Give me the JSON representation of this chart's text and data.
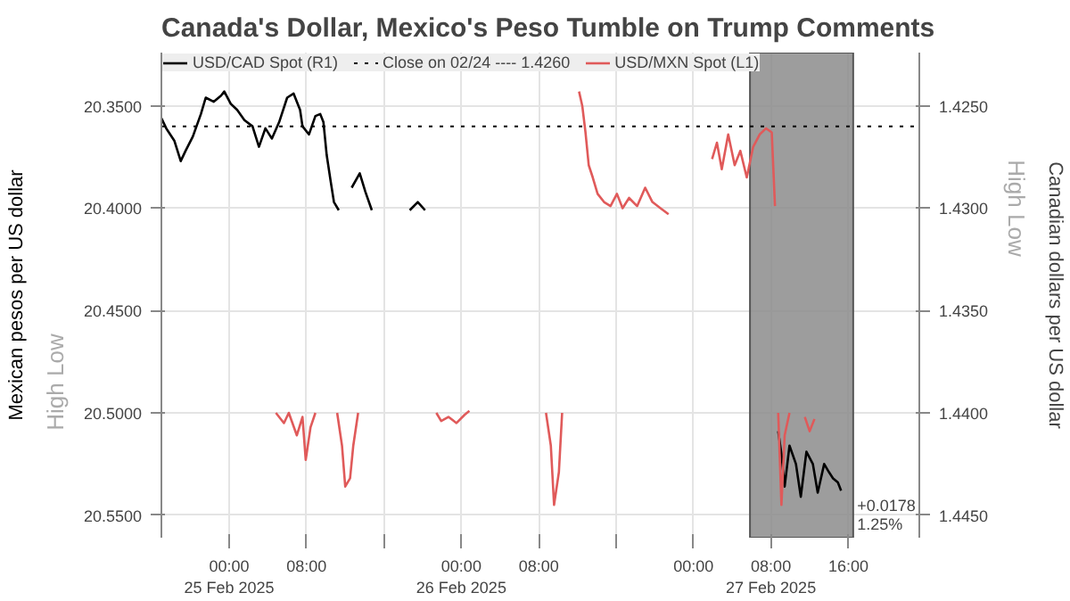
{
  "chart_data": {
    "type": "line",
    "title": "Canada's Dollar, Mexico's Peso Tumble on Trump Comments",
    "ylabel": "Mexican pesos per US dollar",
    "y2label": "Canadian dollars per US dollar",
    "annotations": [
      "Low",
      "High",
      "Low",
      "High",
      "+0.0178\n1.25%"
    ],
    "xlim": [
      "2025-02-24T17:00",
      "2025-02-27T23:20"
    ],
    "xticks": [
      {
        "value": "2025-02-25T00:00",
        "label": "00:00\n25 Feb 2025"
      },
      {
        "value": "2025-02-25T08:00",
        "label": "08:00"
      },
      {
        "value": "2025-02-25T16:00",
        "label": null
      },
      {
        "value": "2025-02-26T00:00",
        "label": "00:00\n26 Feb 2025"
      },
      {
        "value": "2025-02-26T08:00",
        "label": "08:00"
      },
      {
        "value": "2025-02-26T16:00",
        "label": null
      },
      {
        "value": "2025-02-27T00:00",
        "label": "00:00"
      },
      {
        "value": "2025-02-27T08:00",
        "label": "08:00\n27 Feb 2025"
      },
      {
        "value": "2025-02-27T16:00",
        "label": "16:00"
      }
    ],
    "ylim": [
      20.561,
      20.324
    ],
    "yticks": [
      {
        "value": 20.35,
        "label": "20.3500"
      },
      {
        "value": 20.4,
        "label": "20.4000"
      },
      {
        "value": 20.45,
        "label": "20.4500"
      },
      {
        "value": 20.5,
        "label": "20.5000"
      },
      {
        "value": 20.55,
        "label": "20.5500"
      }
    ],
    "y2lim": [
      1.4461,
      1.4224
    ],
    "y2ticks": [
      {
        "value": 1.425,
        "label": "1.4250"
      },
      {
        "value": 1.43,
        "label": "1.4300"
      },
      {
        "value": 1.435,
        "label": "1.4350"
      },
      {
        "value": 1.44,
        "label": "1.4400"
      },
      {
        "value": 1.445,
        "label": "1.4450"
      }
    ],
    "grid": true,
    "legend": "top",
    "series": [
      {
        "name": "USD/CAD Spot (R1)",
        "color": "#000000",
        "axis": "y2",
        "x": [
          "2025-02-24T17:00",
          "2025-02-24T17:30",
          "2025-02-24T18:20",
          "2025-02-24T19:00",
          "2025-02-24T19:30",
          "2025-02-24T20:15",
          "2025-02-24T21:05",
          "2025-02-24T21:35",
          "2025-02-24T22:25",
          "2025-02-24T23:10",
          "2025-02-24T23:30",
          "2025-02-25T00:10",
          "2025-02-25T00:50",
          "2025-02-25T01:35",
          "2025-02-25T02:25",
          "2025-02-25T03:05",
          "2025-02-25T03:45",
          "2025-02-25T04:25",
          "2025-02-25T05:10",
          "2025-02-25T06:00",
          "2025-02-25T06:40",
          "2025-02-25T07:20",
          "2025-02-25T07:35",
          "2025-02-25T08:15",
          "2025-02-25T08:55",
          "2025-02-25T09:25",
          "2025-02-25T09:45",
          "2025-02-25T10:05",
          "2025-02-25T10:30",
          "2025-02-25T10:50",
          "2025-02-25T11:20",
          "2025-02-25T12:00",
          "2025-02-25T12:40",
          "2025-02-25T13:30",
          "2025-02-25T14:05",
          "2025-02-25T14:45",
          "2025-02-25T16:15",
          "2025-02-25T18:40",
          "2025-02-25T19:30",
          "2025-02-25T20:15",
          "2025-02-26T23:50",
          "2025-02-27T08:45",
          "2025-02-27T09:05",
          "2025-02-27T09:25",
          "2025-02-27T09:55",
          "2025-02-27T10:35",
          "2025-02-27T11:05",
          "2025-02-27T11:40",
          "2025-02-27T12:20",
          "2025-02-27T12:50",
          "2025-02-27T13:30",
          "2025-02-27T14:00",
          "2025-02-27T14:25",
          "2025-02-27T14:55",
          "2025-02-27T15:15"
        ],
        "values": [
          1.4256,
          1.4261,
          1.4267,
          1.4277,
          1.4272,
          1.4265,
          1.4254,
          1.4246,
          1.4248,
          1.4245,
          1.4243,
          1.4249,
          1.4252,
          1.4257,
          1.426,
          1.427,
          1.4261,
          1.4266,
          1.4258,
          1.4246,
          1.4244,
          1.4252,
          1.426,
          1.4264,
          1.4255,
          1.4254,
          1.4258,
          1.4274,
          1.4287,
          1.4297,
          1.4301,
          null,
          1.429,
          1.4283,
          1.4292,
          1.4301,
          null,
          1.4301,
          1.4297,
          1.4301,
          null,
          1.4409,
          1.442,
          1.4436,
          1.4416,
          1.4425,
          1.4441,
          1.4419,
          1.4425,
          1.4439,
          1.4425,
          1.4429,
          1.4432,
          1.4434,
          1.4438
        ]
      },
      {
        "name": "USD/MXN Spot (L1)",
        "color": "#e05a5a",
        "x": [
          "2025-02-25T04:50",
          "2025-02-25T05:40",
          "2025-02-25T06:10",
          "2025-02-25T07:00",
          "2025-02-25T07:35",
          "2025-02-25T07:55",
          "2025-02-25T08:25",
          "2025-02-25T08:55",
          "2025-02-25T09:35",
          "2025-02-25T11:10",
          "2025-02-25T11:40",
          "2025-02-25T12:00",
          "2025-02-25T12:30",
          "2025-02-25T12:50",
          "2025-02-25T13:20",
          "2025-02-25T17:00",
          "2025-02-25T21:25",
          "2025-02-25T21:55",
          "2025-02-25T22:40",
          "2025-02-25T23:30",
          "2025-02-26T00:20",
          "2025-02-26T00:50",
          "2025-02-26T04:25",
          "2025-02-26T08:45",
          "2025-02-26T09:15",
          "2025-02-26T09:35",
          "2025-02-26T10:05",
          "2025-02-26T10:25",
          "2025-02-26T11:10",
          "2025-02-26T12:10",
          "2025-02-26T12:30",
          "2025-02-26T12:50",
          "2025-02-26T13:10",
          "2025-02-26T13:35",
          "2025-02-26T14:05",
          "2025-02-26T14:45",
          "2025-02-26T15:25",
          "2025-02-26T16:05",
          "2025-02-26T16:40",
          "2025-02-26T17:20",
          "2025-02-26T18:10",
          "2025-02-26T19:00",
          "2025-02-26T19:45",
          "2025-02-26T20:35",
          "2025-02-26T21:25",
          "2025-02-26T23:50",
          "2025-02-27T01:55",
          "2025-02-27T02:25",
          "2025-02-27T02:55",
          "2025-02-27T03:35",
          "2025-02-27T04:15",
          "2025-02-27T04:50",
          "2025-02-27T05:30",
          "2025-02-27T06:10",
          "2025-02-27T06:50",
          "2025-02-27T07:30",
          "2025-02-27T08:05",
          "2025-02-27T08:25",
          "2025-02-27T08:35",
          "2025-02-27T08:45",
          "2025-02-27T09:05",
          "2025-02-27T09:25",
          "2025-02-27T09:55",
          "2025-02-27T10:40",
          "2025-02-27T11:30",
          "2025-02-27T12:00",
          "2025-02-27T12:30"
        ],
        "values": [
          20.5,
          20.505,
          20.5,
          20.511,
          20.502,
          20.523,
          20.507,
          20.5,
          null,
          20.5,
          20.516,
          20.536,
          20.532,
          20.516,
          20.5,
          null,
          20.5,
          20.504,
          20.502,
          20.505,
          20.501,
          20.499,
          null,
          20.5,
          20.516,
          20.545,
          20.529,
          20.5,
          null,
          20.343,
          20.35,
          20.363,
          20.379,
          20.385,
          20.393,
          20.397,
          20.399,
          20.393,
          20.4,
          20.395,
          20.399,
          20.39,
          20.397,
          20.4,
          20.403,
          null,
          20.376,
          20.368,
          20.381,
          20.364,
          20.379,
          20.372,
          20.385,
          20.37,
          20.364,
          20.361,
          20.363,
          20.399,
          null,
          20.5,
          20.545,
          20.511,
          20.5,
          null,
          20.502,
          20.509,
          20.503
        ]
      }
    ],
    "ref_lines": [
      {
        "axis": "y2",
        "value": 1.426,
        "label": "Close on 02/24 ---- 1.4260",
        "color": "#000000",
        "line_style": "dotted"
      }
    ],
    "bands": [
      {
        "axis": "x",
        "from": "2025-02-27T05:50",
        "to": "2025-02-27T16:30",
        "color": "#8c8c8c"
      }
    ]
  }
}
